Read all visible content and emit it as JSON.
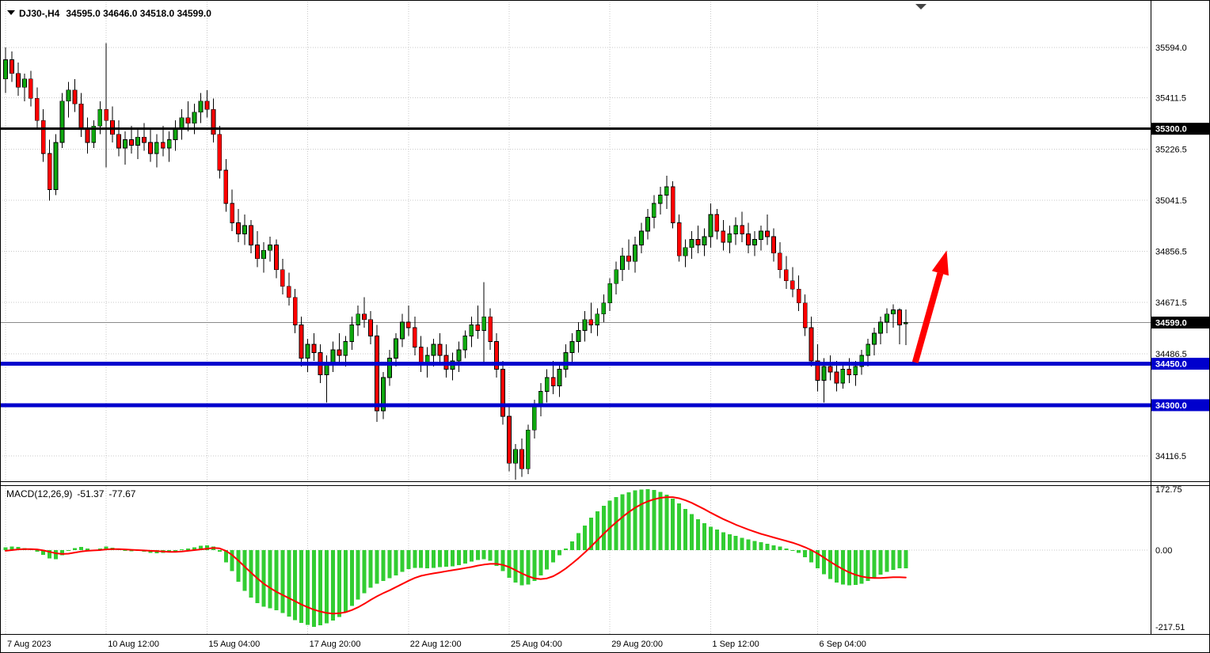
{
  "window": {
    "symbol_period": "DJ30-,H4",
    "ohlc_quote": "34595.0 34646.0 34518.0 34599.0"
  },
  "macd_panel": {
    "label": "MACD(12,26,9)",
    "main_value": "-51.37",
    "signal_value": "-77.67"
  },
  "colors": {
    "up": "#0FA80F",
    "down": "#FF0000",
    "wick": "#000000",
    "grid": "#C9C9C9",
    "histogram": "#32CD32",
    "signal": "#FF0000",
    "support_line": "#0000CD",
    "resistance_line": "#000000",
    "arrow": "#FF0000"
  },
  "chart_data": {
    "type": "candlestick",
    "symbol": "DJ30-",
    "timeframe": "H4",
    "last_bar_ohlc": [
      34595.0,
      34646.0,
      34518.0,
      34599.0
    ],
    "price_axis_range": [
      34045,
      35770
    ],
    "macd_axis_range": [
      -217.51,
      172.75
    ],
    "x_labels": [
      {
        "text": "7 Aug 2023",
        "bar": 0
      },
      {
        "text": "10 Aug 12:00",
        "bar": 16
      },
      {
        "text": "15 Aug 04:00",
        "bar": 32
      },
      {
        "text": "17 Aug 20:00",
        "bar": 48
      },
      {
        "text": "22 Aug 12:00",
        "bar": 64
      },
      {
        "text": "25 Aug 04:00",
        "bar": 80
      },
      {
        "text": "29 Aug 20:00",
        "bar": 96
      },
      {
        "text": "1 Sep 12:00",
        "bar": 112
      },
      {
        "text": "6 Sep 04:00",
        "bar": 129
      }
    ],
    "price_ticks": [
      {
        "label": "35594.0",
        "price": 35594.0
      },
      {
        "label": "35411.5",
        "price": 35411.5
      },
      {
        "label": "35226.5",
        "price": 35226.5
      },
      {
        "label": "35041.5",
        "price": 35041.5
      },
      {
        "label": "34856.5",
        "price": 34856.5
      },
      {
        "label": "34671.5",
        "price": 34671.5
      },
      {
        "label": "34486.5",
        "price": 34486.5
      },
      {
        "label": "34116.5",
        "price": 34116.5
      }
    ],
    "extra_grid_prices": [
      34301.5
    ],
    "hlines": [
      {
        "name": "resistance-line-35300",
        "label": "35300.0",
        "price": 35300.0,
        "color": "#000000",
        "width": 3
      },
      {
        "name": "support-line-34450",
        "label": "34450.0",
        "price": 34450.0,
        "color": "#0000CD",
        "width": 5
      },
      {
        "name": "support-line-34300",
        "label": "34300.0",
        "price": 34300.0,
        "color": "#0000CD",
        "width": 5
      }
    ],
    "current_price": {
      "label": "34599.0",
      "price": 34599.0
    },
    "arrow": {
      "from_bar": 144.5,
      "from_price": 34455,
      "to_bar": 149.5,
      "to_price": 34860
    },
    "candles": [
      [
        35480,
        35594,
        35430,
        35550
      ],
      [
        35550,
        35580,
        35470,
        35500
      ],
      [
        35500,
        35540,
        35420,
        35450
      ],
      [
        35450,
        35500,
        35400,
        35480
      ],
      [
        35480,
        35510,
        35380,
        35410
      ],
      [
        35410,
        35450,
        35300,
        35330
      ],
      [
        35330,
        35370,
        35180,
        35210
      ],
      [
        35210,
        35260,
        35040,
        35080
      ],
      [
        35080,
        35280,
        35060,
        35250
      ],
      [
        35250,
        35430,
        35230,
        35400
      ],
      [
        35400,
        35470,
        35340,
        35440
      ],
      [
        35440,
        35480,
        35360,
        35390
      ],
      [
        35390,
        35430,
        35270,
        35300
      ],
      [
        35300,
        35340,
        35210,
        35250
      ],
      [
        35250,
        35330,
        35230,
        35310
      ],
      [
        35310,
        35400,
        35280,
        35370
      ],
      [
        35370,
        35610,
        35160,
        35330
      ],
      [
        35330,
        35380,
        35250,
        35280
      ],
      [
        35280,
        35330,
        35200,
        35230
      ],
      [
        35230,
        35290,
        35170,
        35260
      ],
      [
        35260,
        35310,
        35210,
        35240
      ],
      [
        35240,
        35300,
        35190,
        35270
      ],
      [
        35270,
        35320,
        35220,
        35250
      ],
      [
        35250,
        35300,
        35180,
        35210
      ],
      [
        35210,
        35280,
        35160,
        35250
      ],
      [
        35250,
        35310,
        35200,
        35230
      ],
      [
        35230,
        35290,
        35180,
        35260
      ],
      [
        35260,
        35330,
        35220,
        35300
      ],
      [
        35300,
        35370,
        35260,
        35340
      ],
      [
        35340,
        35400,
        35290,
        35320
      ],
      [
        35320,
        35390,
        35280,
        35360
      ],
      [
        35360,
        35430,
        35320,
        35400
      ],
      [
        35400,
        35440,
        35340,
        35370
      ],
      [
        35370,
        35410,
        35250,
        35280
      ],
      [
        35280,
        35310,
        35120,
        35150
      ],
      [
        35150,
        35190,
        35000,
        35030
      ],
      [
        35030,
        35080,
        34930,
        34960
      ],
      [
        34960,
        35010,
        34890,
        34920
      ],
      [
        34920,
        34990,
        34880,
        34950
      ],
      [
        34950,
        34970,
        34850,
        34880
      ],
      [
        34880,
        34930,
        34800,
        34830
      ],
      [
        34830,
        34890,
        34780,
        34860
      ],
      [
        34860,
        34910,
        34820,
        34880
      ],
      [
        34880,
        34900,
        34760,
        34790
      ],
      [
        34790,
        34830,
        34700,
        34730
      ],
      [
        34730,
        34780,
        34660,
        34690
      ],
      [
        34690,
        34720,
        34560,
        34590
      ],
      [
        34590,
        34620,
        34440,
        34470
      ],
      [
        34470,
        34540,
        34420,
        34520
      ],
      [
        34520,
        34560,
        34460,
        34490
      ],
      [
        34490,
        34520,
        34380,
        34410
      ],
      [
        34410,
        34480,
        34310,
        34450
      ],
      [
        34450,
        34530,
        34420,
        34500
      ],
      [
        34500,
        34560,
        34450,
        34480
      ],
      [
        34480,
        34550,
        34440,
        34530
      ],
      [
        34530,
        34620,
        34500,
        34590
      ],
      [
        34590,
        34660,
        34550,
        34630
      ],
      [
        34630,
        34690,
        34580,
        34610
      ],
      [
        34610,
        34640,
        34520,
        34550
      ],
      [
        34550,
        34590,
        34240,
        34280
      ],
      [
        34280,
        34420,
        34250,
        34400
      ],
      [
        34400,
        34500,
        34370,
        34470
      ],
      [
        34470,
        34560,
        34440,
        34540
      ],
      [
        34540,
        34630,
        34510,
        34600
      ],
      [
        34600,
        34660,
        34550,
        34580
      ],
      [
        34580,
        34620,
        34480,
        34510
      ],
      [
        34510,
        34550,
        34420,
        34450
      ],
      [
        34450,
        34510,
        34400,
        34480
      ],
      [
        34480,
        34540,
        34440,
        34520
      ],
      [
        34520,
        34560,
        34450,
        34480
      ],
      [
        34480,
        34520,
        34400,
        34430
      ],
      [
        34430,
        34490,
        34390,
        34460
      ],
      [
        34460,
        34530,
        34420,
        34500
      ],
      [
        34500,
        34570,
        34470,
        34550
      ],
      [
        34550,
        34620,
        34510,
        34590
      ],
      [
        34590,
        34660,
        34540,
        34570
      ],
      [
        34570,
        34745,
        34450,
        34620
      ],
      [
        34620,
        34650,
        34500,
        34530
      ],
      [
        34530,
        34560,
        34400,
        34430
      ],
      [
        34430,
        34460,
        34230,
        34260
      ],
      [
        34260,
        34300,
        34060,
        34090
      ],
      [
        34090,
        34160,
        34030,
        34140
      ],
      [
        34140,
        34180,
        34040,
        34070
      ],
      [
        34070,
        34230,
        34050,
        34210
      ],
      [
        34210,
        34320,
        34180,
        34300
      ],
      [
        34300,
        34380,
        34260,
        34350
      ],
      [
        34350,
        34430,
        34310,
        34400
      ],
      [
        34400,
        34460,
        34340,
        34370
      ],
      [
        34370,
        34450,
        34330,
        34430
      ],
      [
        34430,
        34520,
        34400,
        34490
      ],
      [
        34490,
        34560,
        34450,
        34530
      ],
      [
        34530,
        34600,
        34490,
        34570
      ],
      [
        34570,
        34640,
        34530,
        34610
      ],
      [
        34610,
        34670,
        34560,
        34590
      ],
      [
        34590,
        34650,
        34550,
        34630
      ],
      [
        34630,
        34700,
        34600,
        34670
      ],
      [
        34670,
        34760,
        34640,
        34740
      ],
      [
        34740,
        34820,
        34700,
        34790
      ],
      [
        34790,
        34870,
        34750,
        34840
      ],
      [
        34840,
        34900,
        34790,
        34820
      ],
      [
        34820,
        34910,
        34780,
        34880
      ],
      [
        34880,
        34960,
        34850,
        34930
      ],
      [
        34930,
        35010,
        34900,
        34980
      ],
      [
        34980,
        35060,
        34940,
        35030
      ],
      [
        35030,
        35090,
        34990,
        35060
      ],
      [
        35060,
        35130,
        35010,
        35090
      ],
      [
        35090,
        35110,
        34940,
        34960
      ],
      [
        34960,
        34990,
        34820,
        34840
      ],
      [
        34840,
        34900,
        34800,
        34870
      ],
      [
        34870,
        34930,
        34830,
        34900
      ],
      [
        34900,
        34950,
        34850,
        34880
      ],
      [
        34880,
        34940,
        34840,
        34910
      ],
      [
        34910,
        35030,
        34870,
        34990
      ],
      [
        34990,
        35010,
        34900,
        34930
      ],
      [
        34930,
        34970,
        34860,
        34890
      ],
      [
        34890,
        34950,
        34850,
        34920
      ],
      [
        34920,
        34980,
        34880,
        34950
      ],
      [
        34950,
        35000,
        34890,
        34920
      ],
      [
        34920,
        34960,
        34850,
        34880
      ],
      [
        34880,
        34930,
        34840,
        34900
      ],
      [
        34900,
        34950,
        34860,
        34930
      ],
      [
        34930,
        34990,
        34880,
        34910
      ],
      [
        34910,
        34940,
        34820,
        34850
      ],
      [
        34850,
        34890,
        34760,
        34790
      ],
      [
        34790,
        34840,
        34720,
        34750
      ],
      [
        34750,
        34800,
        34690,
        34720
      ],
      [
        34720,
        34770,
        34640,
        34670
      ],
      [
        34670,
        34700,
        34550,
        34580
      ],
      [
        34580,
        34620,
        34440,
        34460
      ],
      [
        34460,
        34520,
        34350,
        34390
      ],
      [
        34390,
        34470,
        34310,
        34440
      ],
      [
        34440,
        34480,
        34390,
        34420
      ],
      [
        34420,
        34460,
        34350,
        34380
      ],
      [
        34380,
        34450,
        34360,
        34430
      ],
      [
        34430,
        34470,
        34380,
        34410
      ],
      [
        34410,
        34460,
        34370,
        34440
      ],
      [
        34440,
        34500,
        34410,
        34480
      ],
      [
        34480,
        34540,
        34440,
        34520
      ],
      [
        34520,
        34580,
        34480,
        34560
      ],
      [
        34560,
        34620,
        34520,
        34600
      ],
      [
        34600,
        34650,
        34560,
        34630
      ],
      [
        34630,
        34665,
        34580,
        34645
      ],
      [
        34645,
        34650,
        34520,
        34590
      ],
      [
        34595,
        34646,
        34518,
        34599
      ]
    ],
    "macd": {
      "params": [
        12,
        26,
        9
      ],
      "main_last": -51.37,
      "signal_last": -77.67,
      "ticks": [
        {
          "label": "172.75",
          "value": 172.75
        },
        {
          "label": "0.00",
          "value": 0
        },
        {
          "label": "-217.51",
          "value": -217.51
        }
      ],
      "histogram": [
        8,
        10,
        9,
        6,
        2,
        -4,
        -14,
        -24,
        -26,
        -15,
        -2,
        6,
        9,
        4,
        -2,
        4,
        10,
        7,
        3,
        0,
        -3,
        -2,
        -4,
        -8,
        -9,
        -8,
        -6,
        -3,
        2,
        5,
        8,
        12,
        14,
        10,
        -5,
        -35,
        -60,
        -90,
        -115,
        -135,
        -150,
        -160,
        -165,
        -170,
        -178,
        -188,
        -198,
        -206,
        -212,
        -217.51,
        -213,
        -208,
        -200,
        -190,
        -175,
        -158,
        -140,
        -122,
        -106,
        -95,
        -88,
        -80,
        -72,
        -62,
        -54,
        -50,
        -50,
        -52,
        -50,
        -48,
        -47,
        -46,
        -43,
        -38,
        -32,
        -28,
        -26,
        -30,
        -45,
        -60,
        -78,
        -92,
        -100,
        -98,
        -88,
        -72,
        -55,
        -35,
        -15,
        5,
        25,
        48,
        70,
        92,
        110,
        126,
        140,
        150,
        158,
        164,
        169,
        172,
        172.75,
        170,
        165,
        157,
        146,
        132,
        117,
        102,
        88,
        76,
        66,
        58,
        51,
        45,
        40,
        35,
        30,
        26,
        22,
        18,
        14,
        10,
        5,
        0,
        -8,
        -20,
        -35,
        -52,
        -68,
        -82,
        -92,
        -98,
        -100,
        -99,
        -95,
        -88,
        -79,
        -70,
        -62,
        -56,
        -52,
        -51.37
      ],
      "signal": [
        -2,
        0,
        2,
        3,
        3,
        2,
        -1,
        -5,
        -9,
        -11,
        -10,
        -7,
        -4,
        -2,
        -1,
        0,
        2,
        3,
        3,
        2,
        1,
        0,
        -1,
        -2,
        -3,
        -4,
        -5,
        -5,
        -4,
        -2,
        0,
        2,
        4,
        6,
        5,
        -2,
        -14,
        -30,
        -47,
        -64,
        -80,
        -95,
        -107,
        -118,
        -127,
        -136,
        -145,
        -154,
        -162,
        -169,
        -174,
        -178,
        -180,
        -179,
        -176,
        -170,
        -162,
        -152,
        -141,
        -131,
        -122,
        -114,
        -105,
        -96,
        -87,
        -79,
        -73,
        -69,
        -66,
        -63,
        -60,
        -57,
        -54,
        -51,
        -48,
        -44,
        -41,
        -39,
        -39,
        -42,
        -48,
        -57,
        -66,
        -74,
        -80,
        -82,
        -80,
        -74,
        -64,
        -52,
        -38,
        -23,
        -7,
        10,
        28,
        46,
        63,
        79,
        94,
        108,
        120,
        130,
        138,
        144,
        148,
        150,
        150,
        147,
        141,
        134,
        125,
        116,
        106,
        97,
        88,
        80,
        72,
        65,
        58,
        52,
        46,
        41,
        36,
        31,
        26,
        21,
        15,
        8,
        0,
        -10,
        -21,
        -33,
        -44,
        -54,
        -63,
        -70,
        -75,
        -78,
        -79,
        -79,
        -78,
        -77,
        -77,
        -77.67
      ]
    }
  }
}
